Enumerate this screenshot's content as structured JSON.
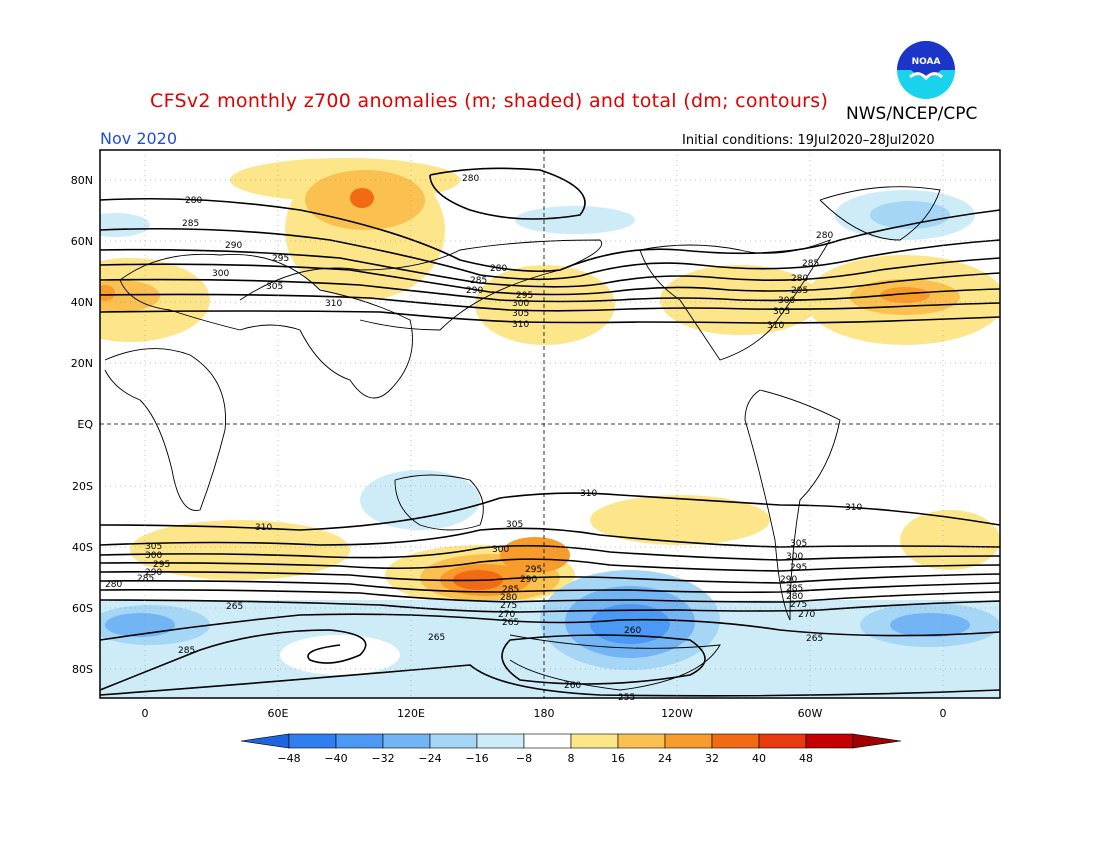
{
  "title": "CFSv2 monthly z700 anomalies (m; shaded) and total (dm; contours)",
  "agency": "NWS/NCEP/CPC",
  "month": "Nov 2020",
  "initial_conditions": "Initial conditions: 19Jul2020–28Jul2020",
  "logo_text": "NOAA",
  "lat_labels": [
    "80N",
    "60N",
    "40N",
    "20N",
    "EQ",
    "20S",
    "40S",
    "60S",
    "80S"
  ],
  "lon_labels": [
    "0",
    "60E",
    "120E",
    "180",
    "120W",
    "60W",
    "0"
  ],
  "colorbar": {
    "ticks": [
      "−48",
      "−40",
      "−32",
      "−24",
      "−16",
      "−8",
      "8",
      "16",
      "24",
      "32",
      "40",
      "48"
    ],
    "colors": [
      "#1e64dc",
      "#2f7ff0",
      "#4b98f5",
      "#73b4f5",
      "#a6d6f5",
      "#cdecf7",
      "#ffffff",
      "#fde68a",
      "#fbc150",
      "#f79c2a",
      "#f26a14",
      "#e83a0c",
      "#c40000",
      "#a00000"
    ]
  },
  "contour_labels_north": [
    "280",
    "285",
    "290",
    "295",
    "300",
    "305",
    "310"
  ],
  "contour_labels_south": [
    "310",
    "305",
    "300",
    "295",
    "290",
    "285",
    "280",
    "275",
    "270",
    "265",
    "260",
    "255"
  ],
  "anomaly_colors": {
    "pos_light": "#fde68a",
    "pos_mid": "#fbc150",
    "pos_strong": "#f79c2a",
    "pos_max": "#f26a14",
    "neg_light": "#cdecf7",
    "neg_mid": "#a6d6f5",
    "neg_strong": "#73b4f5",
    "neg_max": "#2f7ff0",
    "neg_core": "#1e64dc"
  }
}
